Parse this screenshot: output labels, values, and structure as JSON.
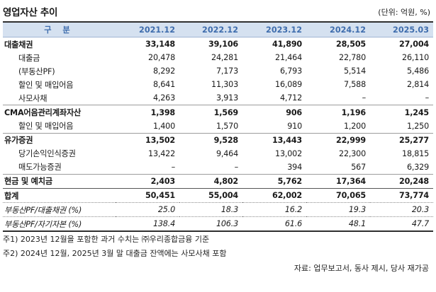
{
  "title": "영업자산 추이",
  "unit": "(단위: 억원, %)",
  "header": [
    "구 분",
    "2021.12",
    "2022.12",
    "2023.12",
    "2024.12",
    "2025.03"
  ],
  "rows": [
    {
      "label": "대출채권",
      "values": [
        "33,148",
        "39,106",
        "41,890",
        "28,505",
        "27,004"
      ]
    },
    {
      "label": "대출금",
      "values": [
        "20,478",
        "24,281",
        "21,464",
        "22,780",
        "26,110"
      ]
    },
    {
      "label": "(부동산PF)",
      "values": [
        "8,292",
        "7,173",
        "6,793",
        "5,514",
        "5,486"
      ]
    },
    {
      "label": "할인 및 매입어음",
      "values": [
        "8,641",
        "11,303",
        "16,089",
        "7,588",
        "2,814"
      ]
    },
    {
      "label": "사모사채",
      "values": [
        "4,263",
        "3,913",
        "4,712",
        "–",
        "–"
      ]
    },
    {
      "label": "CMA어음관리계좌자산",
      "values": [
        "1,398",
        "1,569",
        "906",
        "1,196",
        "1,245"
      ]
    },
    {
      "label": "할인 및 매입어음",
      "values": [
        "1,400",
        "1,570",
        "910",
        "1,200",
        "1,250"
      ]
    },
    {
      "label": "유가증권",
      "values": [
        "13,502",
        "9,528",
        "13,443",
        "22,999",
        "25,277"
      ]
    },
    {
      "label": "당기손익인식증권",
      "values": [
        "13,422",
        "9,464",
        "13,002",
        "22,300",
        "18,815"
      ]
    },
    {
      "label": "매도가능증권",
      "values": [
        "–",
        "–",
        "394",
        "567",
        "6,329"
      ]
    },
    {
      "label": "현금 및 예치금",
      "values": [
        "2,403",
        "4,802",
        "5,762",
        "17,364",
        "20,248"
      ]
    },
    {
      "label": "합계",
      "values": [
        "50,451",
        "55,004",
        "62,002",
        "70,065",
        "73,774"
      ]
    },
    {
      "label": "부동산PF/대출채권 (%)",
      "values": [
        "25.0",
        "18.3",
        "16.2",
        "19.3",
        "20.3"
      ]
    },
    {
      "label": "부동산PF/자기자본 (%)",
      "values": [
        "138.4",
        "106.3",
        "61.6",
        "48.1",
        "47.7"
      ]
    }
  ],
  "notes": [
    "주1) 2023년 12월을 포함한 과거 수치는 ㈜우리종합금융 기준",
    "주2) 2024년 12월, 2025년 3월 말 대출금 잔액에는 사모사채 포함"
  ],
  "source": "자료: 업무보고서, 동사 제시, 당사 재가공"
}
